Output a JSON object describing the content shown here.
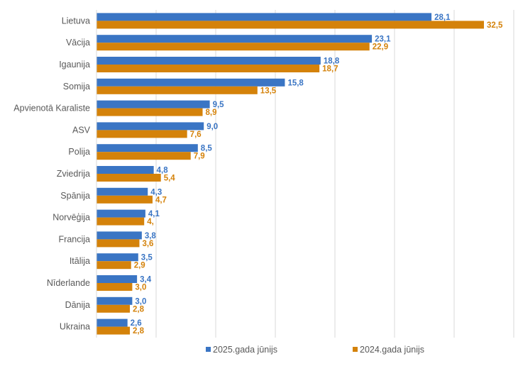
{
  "chart_data": {
    "type": "bar",
    "orientation": "horizontal",
    "categories": [
      "Lietuva",
      "Vācija",
      "Igaunija",
      "Somija",
      "Apvienotā Karaliste",
      "ASV",
      "Polija",
      "Zviedrija",
      "Spānija",
      "Norvēģija",
      "Francija",
      "Itālija",
      "Nīderlande",
      "Dānija",
      "Ukraina"
    ],
    "series": [
      {
        "name": "2025.gada jūnijs",
        "color": "#3a75c4",
        "values": [
          28.1,
          23.1,
          18.8,
          15.8,
          9.5,
          9.0,
          8.5,
          4.8,
          4.3,
          4.1,
          3.8,
          3.5,
          3.4,
          3.0,
          2.6
        ],
        "labels": [
          "28,1",
          "23,1",
          "18,8",
          "15,8",
          "9,5",
          "9,0",
          "8,5",
          "4,8",
          "4,3",
          "4,1",
          "3,8",
          "3,5",
          "3,4",
          "3,0",
          "2,6"
        ]
      },
      {
        "name": "2024.gada jūnijs",
        "color": "#d4820a",
        "values": [
          32.5,
          22.9,
          18.7,
          13.5,
          8.9,
          7.6,
          7.9,
          5.4,
          4.7,
          4.0,
          3.6,
          2.9,
          3.0,
          2.8,
          2.8
        ],
        "labels": [
          "32,5",
          "22,9",
          "18,7",
          "13,5",
          "8,9",
          "7,6",
          "7,9",
          "5,4",
          "4,7",
          "4,",
          "3,6",
          "2,9",
          "3,0",
          "2,8",
          "2,8"
        ]
      }
    ],
    "xlim": [
      0,
      35
    ],
    "grid": true,
    "legend_position": "bottom"
  }
}
